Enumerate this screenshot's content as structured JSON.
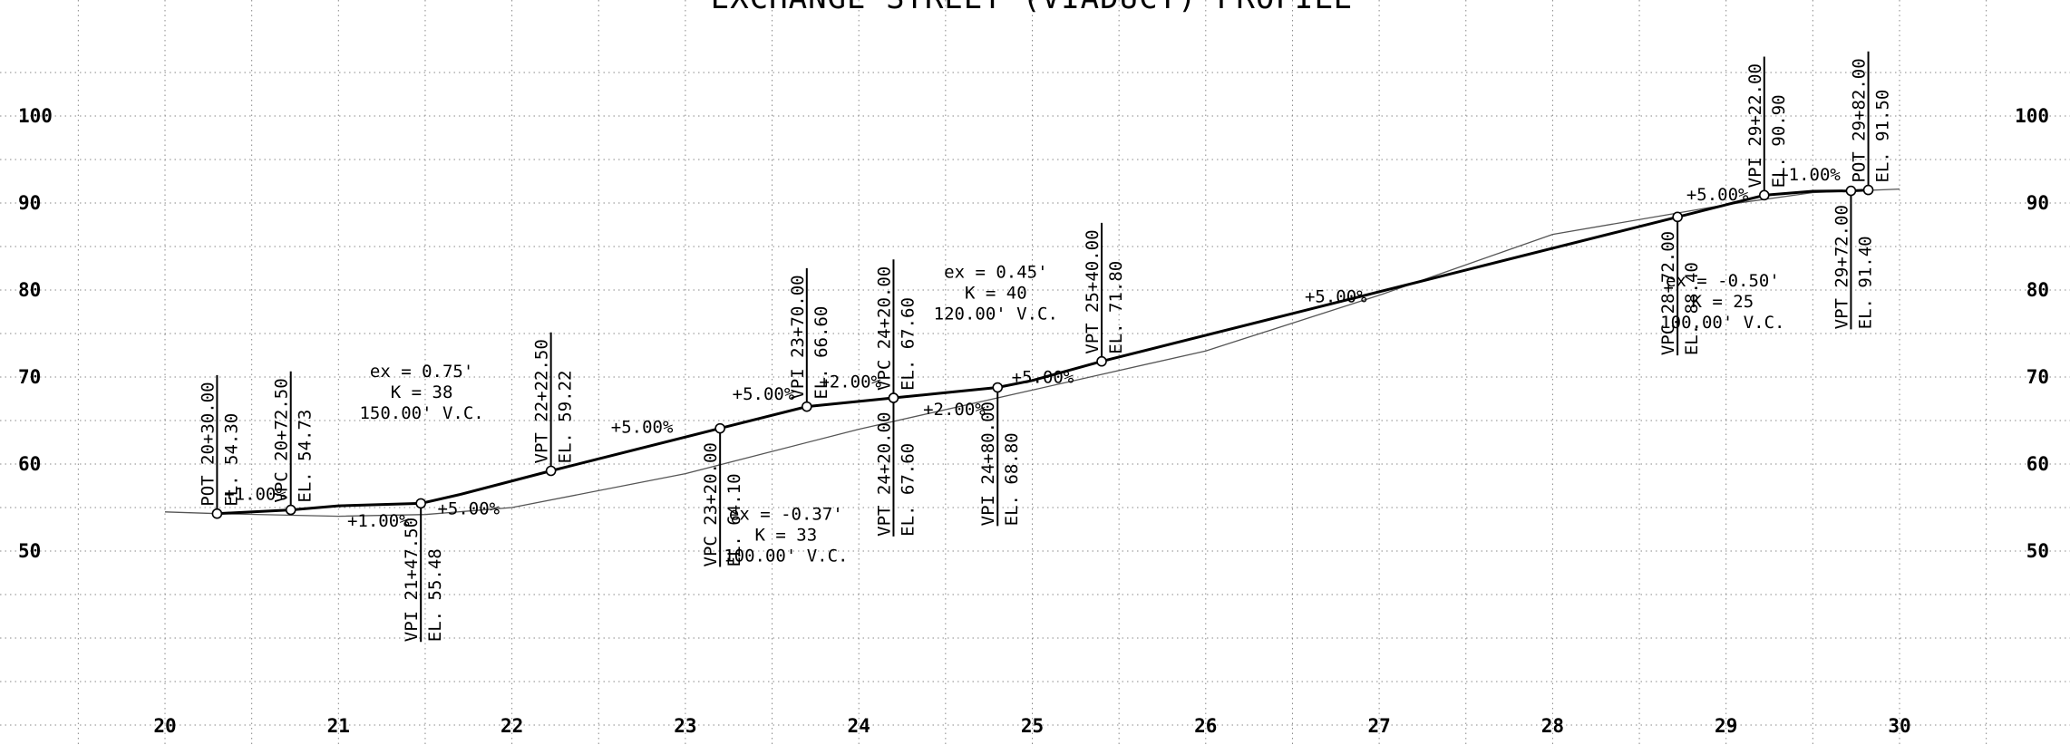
{
  "title": "EXCHANGE STREET (VIADUCT) PROFILE",
  "chart_data": {
    "type": "line",
    "x_range": [
      19.5,
      31.2
    ],
    "y_range": [
      25,
      109
    ],
    "y_ticks": [
      50,
      60,
      70,
      80,
      90,
      100
    ],
    "x_ticks": [
      20,
      21,
      22,
      23,
      24,
      25,
      26,
      27,
      28,
      29,
      30
    ],
    "series": [
      {
        "role": "proposed",
        "points": [
          [
            20.3,
            54.3
          ],
          [
            20.725,
            54.73
          ],
          [
            21.0,
            55.2
          ],
          [
            21.475,
            55.48
          ],
          [
            21.7,
            56.5
          ],
          [
            22.225,
            59.22
          ],
          [
            23.2,
            64.1
          ],
          [
            23.7,
            66.6
          ],
          [
            24.2,
            67.6
          ],
          [
            24.5,
            68.2
          ],
          [
            24.8,
            68.8
          ],
          [
            25.0,
            69.6
          ],
          [
            25.4,
            71.8
          ],
          [
            26.5,
            77.3
          ],
          [
            27.5,
            82.3
          ],
          [
            28.72,
            88.4
          ],
          [
            29.0,
            89.8
          ],
          [
            29.22,
            90.9
          ],
          [
            29.5,
            91.35
          ],
          [
            29.72,
            91.4
          ],
          [
            29.82,
            91.5
          ]
        ]
      },
      {
        "role": "existing",
        "points": [
          [
            20.0,
            54.5
          ],
          [
            20.3,
            54.3
          ],
          [
            21.0,
            54.0
          ],
          [
            21.5,
            54.2
          ],
          [
            22.0,
            55.0
          ],
          [
            23.0,
            58.9
          ],
          [
            24.0,
            64.0
          ],
          [
            25.0,
            68.5
          ],
          [
            26.0,
            73.0
          ],
          [
            27.0,
            79.4
          ],
          [
            28.0,
            86.4
          ],
          [
            29.0,
            89.8
          ],
          [
            29.5,
            91.2
          ],
          [
            30.0,
            91.6
          ]
        ]
      }
    ],
    "points": [
      {
        "x": 20.3,
        "y": 54.3,
        "lines": [
          "POT 20+30.00",
          "EL. 54.30"
        ],
        "side": "up"
      },
      {
        "x": 20.725,
        "y": 54.73,
        "lines": [
          "VPC 20+72.50",
          "EL. 54.73"
        ],
        "side": "up"
      },
      {
        "x": 21.475,
        "y": 55.48,
        "lines": [
          "VPI 21+47.50",
          "EL. 55.48"
        ],
        "side": "down"
      },
      {
        "x": 22.225,
        "y": 59.22,
        "lines": [
          "VPT 22+22.50",
          "EL. 59.22"
        ],
        "side": "up"
      },
      {
        "x": 23.2,
        "y": 64.1,
        "lines": [
          "VPC 23+20.00",
          "EL. 64.10"
        ],
        "side": "down"
      },
      {
        "x": 23.7,
        "y": 66.6,
        "lines": [
          "VPI 23+70.00",
          "EL. 66.60"
        ],
        "side": "up"
      },
      {
        "x": 24.2,
        "y": 67.6,
        "lines": [
          "VPC 24+20.00",
          "EL. 67.60"
        ],
        "side": "up"
      },
      {
        "x": 24.2,
        "y": 67.6,
        "lines": [
          "VPT 24+20.00",
          "EL. 67.60"
        ],
        "side": "down"
      },
      {
        "x": 24.8,
        "y": 68.8,
        "lines": [
          "VPI 24+80.00",
          "EL. 68.80"
        ],
        "side": "down"
      },
      {
        "x": 25.4,
        "y": 71.8,
        "lines": [
          "VPT 25+40.00",
          "EL. 71.80"
        ],
        "side": "up"
      },
      {
        "x": 28.72,
        "y": 88.4,
        "lines": [
          "VPC 28+72.00",
          "EL. 88.40"
        ],
        "side": "down"
      },
      {
        "x": 29.22,
        "y": 90.9,
        "lines": [
          "VPI 29+22.00",
          "EL. 90.90"
        ],
        "side": "up"
      },
      {
        "x": 29.72,
        "y": 91.4,
        "lines": [
          "VPT 29+72.00",
          "EL. 91.40"
        ],
        "side": "down"
      },
      {
        "x": 29.82,
        "y": 91.5,
        "lines": [
          "POT 29+82.00",
          "EL. 91.50"
        ],
        "side": "up"
      }
    ],
    "grades": [
      {
        "text": "+1.00%",
        "x": 20.52,
        "y": 55.9
      },
      {
        "text": "+1.00%",
        "x": 21.23,
        "y": 52.8
      },
      {
        "text": "+5.00%",
        "x": 21.75,
        "y": 54.2
      },
      {
        "text": "+5.00%",
        "x": 22.75,
        "y": 63.6
      },
      {
        "text": "+5.00%",
        "x": 23.45,
        "y": 67.4
      },
      {
        "text": "+2.00%",
        "x": 23.95,
        "y": 68.8
      },
      {
        "text": "+2.00%",
        "x": 24.55,
        "y": 65.6
      },
      {
        "text": "+5.00%",
        "x": 25.06,
        "y": 69.3
      },
      {
        "text": "+5.00%",
        "x": 26.75,
        "y": 78.6
      },
      {
        "text": "+5.00%",
        "x": 28.95,
        "y": 90.3
      },
      {
        "text": "+1.00%",
        "x": 29.48,
        "y": 92.6
      }
    ],
    "curves": [
      {
        "lines": [
          "ex = 0.75'",
          "K = 38",
          "150.00' V.C."
        ],
        "x": 21.48,
        "y": 70
      },
      {
        "lines": [
          "ex = -0.37'",
          "K = 33",
          "100.00' V.C."
        ],
        "x": 23.58,
        "y": 53.6
      },
      {
        "lines": [
          "ex = 0.45'",
          "K = 40",
          "120.00' V.C."
        ],
        "x": 24.79,
        "y": 81.4
      },
      {
        "lines": [
          "ex = -0.50'",
          "K = 25",
          "100.00' V.C."
        ],
        "x": 28.98,
        "y": 80.4
      }
    ]
  }
}
